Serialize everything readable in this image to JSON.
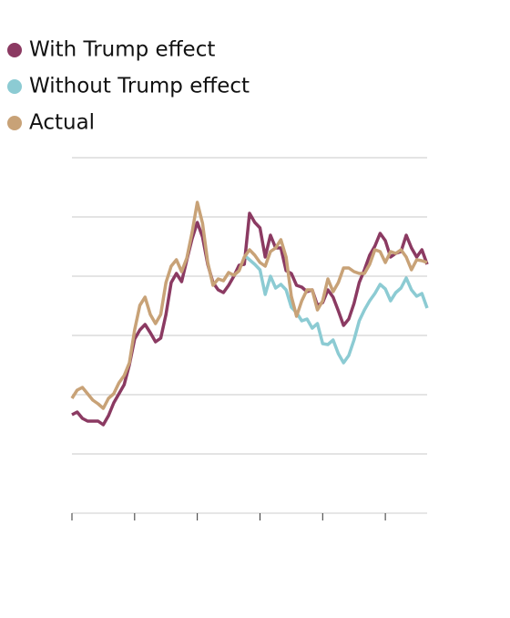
{
  "chart_data": {
    "type": "line",
    "x": [
      0,
      1,
      2,
      3,
      4,
      5,
      6,
      7,
      8,
      9,
      10,
      11,
      12,
      13,
      14,
      15,
      16,
      17,
      18,
      19,
      20,
      21,
      22,
      23,
      24,
      25,
      26,
      27,
      28,
      29,
      30,
      31,
      32,
      33,
      34,
      35,
      36,
      37,
      38,
      39,
      40,
      41,
      42,
      43,
      44,
      45,
      46,
      47,
      48,
      49,
      50,
      51,
      52,
      53,
      54,
      55,
      56,
      57,
      58,
      59,
      60,
      61,
      62,
      63,
      64,
      65,
      66,
      67,
      68
    ],
    "series": [
      {
        "name": "With Trump effect",
        "color": "#8b3a62",
        "values": [
          108,
          111,
          104,
          101,
          101,
          101,
          97,
          107,
          121,
          131,
          141,
          163,
          191,
          201,
          207,
          198,
          188,
          192,
          218,
          253,
          263,
          254,
          278,
          301,
          319,
          303,
          273,
          253,
          245,
          242,
          250,
          260,
          272,
          273,
          329,
          319,
          313,
          281,
          305,
          291,
          291,
          266,
          263,
          250,
          248,
          243,
          245,
          228,
          231,
          245,
          237,
          222,
          206,
          213,
          230,
          253,
          267,
          283,
          293,
          307,
          299,
          281,
          285,
          287,
          305,
          291,
          281,
          289,
          273
        ]
      },
      {
        "name": "Without Trump effect",
        "color": "#8ccbd3",
        "values": [
          null,
          null,
          null,
          null,
          null,
          null,
          null,
          null,
          null,
          null,
          null,
          null,
          null,
          null,
          null,
          null,
          null,
          null,
          null,
          null,
          null,
          null,
          null,
          null,
          null,
          null,
          null,
          null,
          null,
          null,
          null,
          null,
          null,
          283,
          278,
          273,
          267,
          240,
          260,
          247,
          251,
          245,
          226,
          220,
          211,
          213,
          203,
          208,
          186,
          185,
          190,
          175,
          165,
          173,
          190,
          211,
          223,
          233,
          241,
          251,
          246,
          233,
          242,
          247,
          258,
          245,
          238,
          241,
          225
        ]
      },
      {
        "name": "Actual",
        "color": "#c8a277",
        "values": [
          126,
          135,
          138,
          131,
          124,
          120,
          115,
          126,
          131,
          143,
          151,
          165,
          201,
          228,
          237,
          218,
          208,
          218,
          253,
          271,
          278,
          265,
          280,
          308,
          341,
          318,
          275,
          250,
          257,
          255,
          264,
          261,
          266,
          281,
          289,
          283,
          275,
          271,
          287,
          291,
          300,
          281,
          238,
          216,
          233,
          245,
          245,
          223,
          233,
          257,
          243,
          253,
          269,
          269,
          265,
          263,
          263,
          273,
          289,
          287,
          275,
          287,
          285,
          289,
          281,
          267,
          278,
          277,
          275
        ]
      }
    ],
    "xlim": [
      0,
      68
    ],
    "xticks": [
      0,
      12,
      24,
      36,
      48,
      60
    ],
    "ylim": [
      0,
      390
    ],
    "yticks": [
      65,
      130,
      195,
      260,
      325,
      390
    ],
    "grid": true
  }
}
